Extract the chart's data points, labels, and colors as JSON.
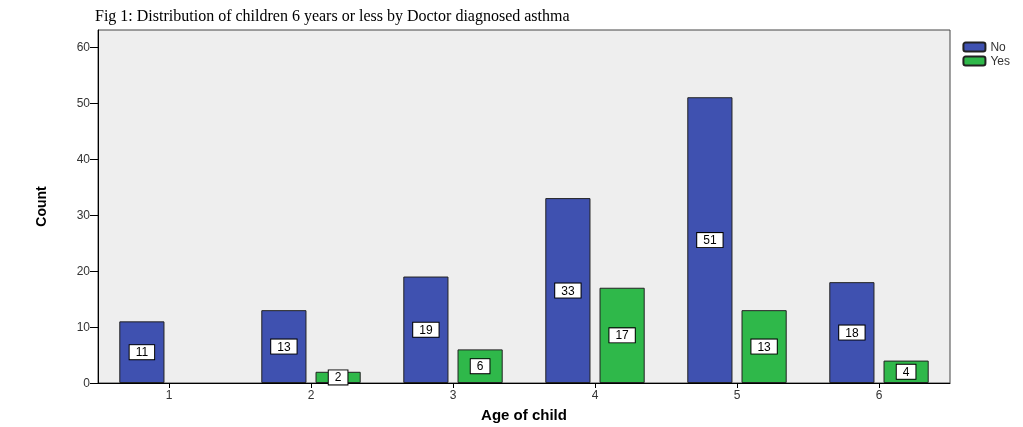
{
  "chart_data": {
    "type": "bar",
    "title": "Fig 1: Distribution of children 6 years or less by Doctor diagnosed asthma",
    "categories": [
      "1",
      "2",
      "3",
      "4",
      "5",
      "6"
    ],
    "series": [
      {
        "name": "No",
        "color": "#3f51b0",
        "values": [
          11,
          13,
          19,
          33,
          51,
          18
        ],
        "value_labels": [
          "11",
          "13",
          "19",
          "33",
          "51",
          "18"
        ]
      },
      {
        "name": "Yes",
        "color": "#2fb84a",
        "values": [
          0,
          2,
          6,
          17,
          13,
          4
        ],
        "value_labels": [
          null,
          "2",
          "6",
          "17",
          "13",
          "4"
        ]
      }
    ],
    "xlabel": "Age of child",
    "ylabel": "Count",
    "ylim": [
      0,
      63
    ],
    "yticks": [
      0,
      10,
      20,
      30,
      40,
      50,
      60
    ],
    "grid": false,
    "legend": "top right"
  }
}
